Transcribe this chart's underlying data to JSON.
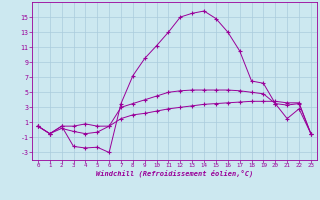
{
  "xlabel": "Windchill (Refroidissement éolien,°C)",
  "background_color": "#cce8f0",
  "grid_color": "#aaccdd",
  "line_color": "#990099",
  "x": [
    0,
    1,
    2,
    3,
    4,
    5,
    6,
    7,
    8,
    9,
    10,
    11,
    12,
    13,
    14,
    15,
    16,
    17,
    18,
    19,
    20,
    21,
    22,
    23
  ],
  "line1": [
    0.5,
    -0.5,
    0.5,
    -2.2,
    -2.4,
    -2.3,
    -3.0,
    3.5,
    7.2,
    9.5,
    11.2,
    13.0,
    15.0,
    15.5,
    15.8,
    14.8,
    13.0,
    10.5,
    6.5,
    6.2,
    3.5,
    1.5,
    2.8,
    -0.5
  ],
  "line2": [
    0.5,
    -0.5,
    0.5,
    0.5,
    0.8,
    0.5,
    0.5,
    3.0,
    3.5,
    4.0,
    4.5,
    5.0,
    5.2,
    5.3,
    5.3,
    5.3,
    5.3,
    5.2,
    5.0,
    4.8,
    3.5,
    3.3,
    3.5,
    -0.5
  ],
  "line3": [
    0.5,
    -0.5,
    0.2,
    -0.2,
    -0.5,
    -0.3,
    0.5,
    1.5,
    2.0,
    2.2,
    2.5,
    2.8,
    3.0,
    3.2,
    3.4,
    3.5,
    3.6,
    3.7,
    3.8,
    3.8,
    3.8,
    3.6,
    3.6,
    -0.5
  ],
  "ylim": [
    -4,
    17
  ],
  "xlim": [
    -0.5,
    23.5
  ],
  "yticks": [
    -3,
    -1,
    1,
    3,
    5,
    7,
    9,
    11,
    13,
    15
  ],
  "xticks": [
    0,
    1,
    2,
    3,
    4,
    5,
    6,
    7,
    8,
    9,
    10,
    11,
    12,
    13,
    14,
    15,
    16,
    17,
    18,
    19,
    20,
    21,
    22,
    23
  ]
}
